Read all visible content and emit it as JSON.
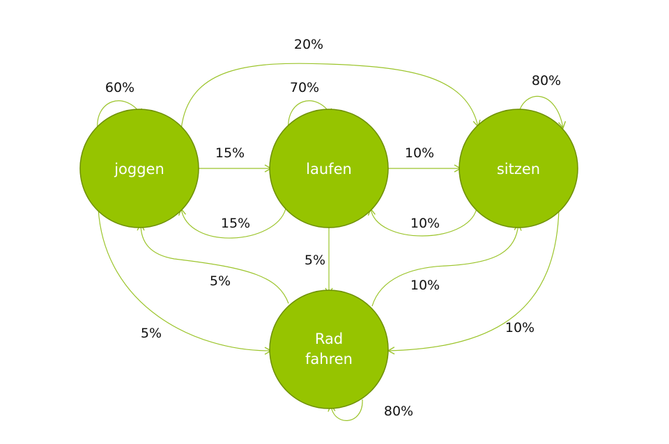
{
  "colors": {
    "node_fill": "#96c400",
    "node_stroke": "#6e9000",
    "edge": "#9bc42a",
    "label_text": "#111111",
    "node_text": "#ffffff"
  },
  "nodes": {
    "joggen": {
      "label": [
        "joggen"
      ]
    },
    "laufen": {
      "label": [
        "laufen"
      ]
    },
    "sitzen": {
      "label": [
        "sitzen"
      ]
    },
    "rad": {
      "label": [
        "Rad",
        "fahren"
      ]
    }
  },
  "edges": [
    {
      "id": "joggen-self",
      "from": "joggen",
      "to": "joggen",
      "label": "60%"
    },
    {
      "id": "laufen-self",
      "from": "laufen",
      "to": "laufen",
      "label": "70%"
    },
    {
      "id": "sitzen-self",
      "from": "sitzen",
      "to": "sitzen",
      "label": "80%"
    },
    {
      "id": "rad-self",
      "from": "rad",
      "to": "rad",
      "label": "80%"
    },
    {
      "id": "joggen-sitzen",
      "from": "joggen",
      "to": "sitzen",
      "label": "20%"
    },
    {
      "id": "joggen-laufen",
      "from": "joggen",
      "to": "laufen",
      "label": "15%"
    },
    {
      "id": "laufen-joggen",
      "from": "laufen",
      "to": "joggen",
      "label": "15%"
    },
    {
      "id": "laufen-sitzen",
      "from": "laufen",
      "to": "sitzen",
      "label": "10%"
    },
    {
      "id": "sitzen-laufen",
      "from": "sitzen",
      "to": "laufen",
      "label": "10%"
    },
    {
      "id": "laufen-rad",
      "from": "laufen",
      "to": "rad",
      "label": "5%"
    },
    {
      "id": "rad-joggen",
      "from": "rad",
      "to": "joggen",
      "label": "5%"
    },
    {
      "id": "joggen-rad",
      "from": "joggen",
      "to": "rad",
      "label": "5%"
    },
    {
      "id": "rad-sitzen",
      "from": "rad",
      "to": "sitzen",
      "label": "10%"
    },
    {
      "id": "sitzen-rad",
      "from": "sitzen",
      "to": "rad",
      "label": "10%"
    }
  ]
}
